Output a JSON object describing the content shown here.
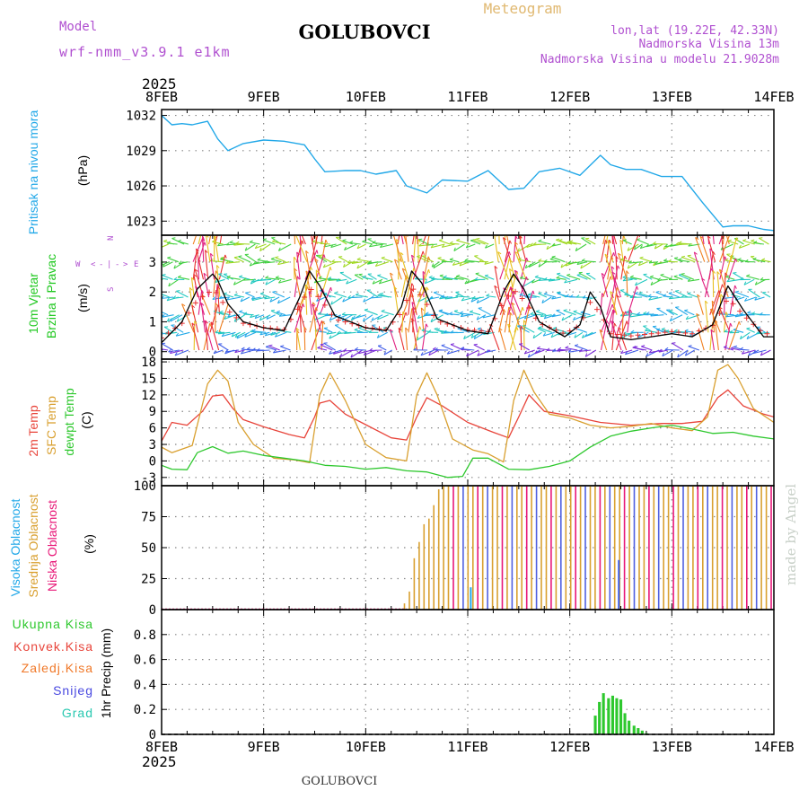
{
  "header": {
    "model_label": "Model",
    "model_name": "wrf-nmm_v3.9.1 e1km",
    "title": "GOLUBOVCI",
    "meteogram_label": "Meteogram",
    "lonlat": "lon,lat (19.22E, 42.33N)",
    "elevation": "Nadmorska Visina 13m",
    "model_elevation": "Nadmorska Visina u modelu 21.9028m",
    "watermark": "made by Angel",
    "footer": "GOLUBOVCI"
  },
  "time_axis": {
    "year": "2025",
    "ticks": [
      "8FEB",
      "9FEB",
      "10FEB",
      "11FEB",
      "12FEB",
      "13FEB",
      "14FEB"
    ]
  },
  "colors": {
    "pressure": "#22a8e8",
    "temp2m": "#e8443a",
    "sfc_temp": "#d9a030",
    "dewpt": "#2ec82e",
    "cloud_high": "#22a8e8",
    "cloud_mid": "#d9a030",
    "cloud_low": "#e81878",
    "precip_total": "#2ec82e",
    "precip_conv": "#e8443a",
    "precip_frozen": "#f07828",
    "precip_snow": "#4848e0",
    "precip_hail": "#28c8b0",
    "wind_label": "#20c820",
    "wind_dir_label": "#b050d0",
    "model_text": "#b050d0",
    "meteogram_text": "#e0b870"
  },
  "chart_data": [
    {
      "type": "line",
      "panel": "pressure",
      "ylabel_left": "Pritisak na nivou mora",
      "unit": "(hPa)",
      "yticks": [
        1023,
        1026,
        1029,
        1032
      ],
      "ylim": [
        1021.8,
        1032.5
      ],
      "series": [
        {
          "x": [
            0,
            0.1,
            0.2,
            0.3,
            0.45,
            0.55,
            0.65,
            0.8,
            1.0,
            1.2,
            1.4,
            1.5,
            1.6,
            1.8,
            1.95,
            2.1,
            2.3,
            2.4,
            2.6,
            2.75,
            3.0,
            3.2,
            3.4,
            3.55,
            3.7,
            3.9,
            4.1,
            4.3,
            4.4,
            4.55,
            4.7,
            4.9,
            5.1,
            5.3,
            5.5,
            5.6,
            5.75,
            5.9,
            6.0
          ],
          "y": [
            1032.0,
            1031.2,
            1031.3,
            1031.2,
            1031.5,
            1030.0,
            1029.0,
            1029.6,
            1029.9,
            1029.8,
            1029.5,
            1028.3,
            1027.2,
            1027.3,
            1027.3,
            1027.0,
            1027.3,
            1026.0,
            1025.4,
            1026.5,
            1026.4,
            1027.3,
            1025.7,
            1025.8,
            1027.2,
            1027.5,
            1026.9,
            1028.6,
            1027.8,
            1027.4,
            1027.4,
            1026.8,
            1026.8,
            1024.6,
            1022.5,
            1022.6,
            1022.6,
            1022.3,
            1022.2
          ]
        }
      ]
    },
    {
      "type": "line",
      "panel": "wind",
      "ylabel_left": [
        "10m Vjetar",
        "Brzina i Pravac"
      ],
      "unit": "(m/s)",
      "direction_legend": [
        "W",
        "<",
        "-",
        "|",
        "-",
        ">",
        "E",
        "N",
        "S"
      ],
      "yticks": [
        0,
        1,
        2,
        3
      ],
      "ylim": [
        -0.25,
        3.9
      ],
      "series": [
        {
          "x": [
            0,
            0.2,
            0.35,
            0.5,
            0.55,
            0.65,
            0.8,
            1.0,
            1.2,
            1.35,
            1.45,
            1.55,
            1.7,
            2.0,
            2.2,
            2.35,
            2.45,
            2.55,
            2.7,
            3.0,
            3.2,
            3.35,
            3.45,
            3.55,
            3.7,
            3.95,
            4.1,
            4.2,
            4.3,
            4.4,
            4.6,
            4.8,
            5.0,
            5.2,
            5.4,
            5.55,
            5.7,
            5.9,
            6.0
          ],
          "y": [
            0.3,
            1.0,
            2.1,
            2.6,
            2.4,
            1.6,
            1.0,
            0.8,
            0.7,
            1.8,
            2.7,
            2.2,
            1.2,
            0.8,
            0.7,
            1.5,
            2.7,
            2.3,
            1.1,
            0.7,
            0.6,
            2.0,
            2.6,
            2.1,
            1.0,
            0.5,
            0.9,
            2.0,
            1.5,
            0.5,
            0.4,
            0.5,
            0.6,
            0.5,
            0.9,
            2.2,
            1.4,
            0.5,
            0.5
          ]
        }
      ]
    },
    {
      "type": "line",
      "panel": "temperature",
      "ylabel_left": [
        "2m Temp",
        "SFC Temp",
        "dewpt Temp"
      ],
      "unit": "(C)",
      "yticks": [
        -3,
        0,
        3,
        6,
        9,
        12,
        15,
        18
      ],
      "ylim": [
        -4.5,
        18.5
      ],
      "series": [
        {
          "name": "2m Temp",
          "x": [
            0,
            0.1,
            0.25,
            0.4,
            0.5,
            0.6,
            0.7,
            0.8,
            1.0,
            1.25,
            1.4,
            1.5,
            1.55,
            1.65,
            1.8,
            2.0,
            2.25,
            2.4,
            2.5,
            2.6,
            2.75,
            3.0,
            3.25,
            3.4,
            3.5,
            3.6,
            3.75,
            4.0,
            4.3,
            4.6,
            4.9,
            5.1,
            5.3,
            5.45,
            5.55,
            5.7,
            5.9,
            6.0
          ],
          "y": [
            3.6,
            7.0,
            6.5,
            9.0,
            11.8,
            12.0,
            9.5,
            7.5,
            6.2,
            4.8,
            4.2,
            8.0,
            10.5,
            11.0,
            8.5,
            6.6,
            4.2,
            3.8,
            8.0,
            11.5,
            10.0,
            7.0,
            5.2,
            4.2,
            8.0,
            12.0,
            9.0,
            8.2,
            7.0,
            6.5,
            6.8,
            6.8,
            7.2,
            11.5,
            12.9,
            10.0,
            8.5,
            8.0
          ]
        },
        {
          "name": "SFC Temp",
          "x": [
            0,
            0.1,
            0.3,
            0.45,
            0.55,
            0.65,
            0.75,
            0.9,
            1.1,
            1.3,
            1.45,
            1.55,
            1.65,
            1.8,
            2.0,
            2.2,
            2.4,
            2.5,
            2.6,
            2.7,
            2.85,
            3.05,
            3.2,
            3.35,
            3.45,
            3.55,
            3.65,
            3.8,
            4.0,
            4.2,
            4.4,
            4.6,
            4.8,
            5.0,
            5.2,
            5.35,
            5.45,
            5.55,
            5.65,
            5.8,
            6.0
          ],
          "y": [
            2.5,
            1.5,
            2.8,
            14.0,
            16.5,
            14.5,
            7.0,
            3.0,
            0.5,
            0.2,
            -0.3,
            12.0,
            16.0,
            11.0,
            3.0,
            0.6,
            0.0,
            12.0,
            16.0,
            12.0,
            4.0,
            2.0,
            1.3,
            -0.2,
            11.0,
            16.5,
            12.5,
            8.5,
            7.8,
            6.5,
            6.0,
            6.3,
            6.8,
            6.0,
            5.5,
            8.0,
            16.5,
            17.5,
            15.0,
            9.5,
            7.0
          ]
        },
        {
          "name": "dewpt Temp",
          "x": [
            0,
            0.1,
            0.25,
            0.35,
            0.5,
            0.65,
            0.8,
            1.0,
            1.2,
            1.4,
            1.6,
            1.8,
            2.0,
            2.2,
            2.4,
            2.6,
            2.8,
            2.95,
            3.05,
            3.2,
            3.4,
            3.6,
            3.8,
            4.0,
            4.2,
            4.4,
            4.6,
            4.8,
            5.0,
            5.2,
            5.4,
            5.6,
            5.8,
            6.0
          ],
          "y": [
            -0.8,
            -1.5,
            -1.6,
            1.5,
            2.6,
            1.4,
            1.8,
            1.0,
            0.5,
            0.0,
            -0.8,
            -1.0,
            -1.5,
            -1.2,
            -1.8,
            -2.0,
            -3.0,
            -2.8,
            0.5,
            0.5,
            -1.5,
            -1.6,
            -1.0,
            0.0,
            2.5,
            4.5,
            5.4,
            6.0,
            6.5,
            5.8,
            5.0,
            5.2,
            4.5,
            4.0
          ]
        }
      ]
    },
    {
      "type": "bar",
      "panel": "cloud",
      "ylabel_left": [
        "Visoka Oblacnost",
        "Srednja Oblacnost",
        "Niska Oblacnost"
      ],
      "unit": "(%)",
      "yticks": [
        0,
        25,
        50,
        75,
        100
      ],
      "ylim": [
        0,
        100
      ],
      "note": "hourly bars; clear until ~10FEB 09h, mid cloud rising to 100% thereafter, mixed low/high bars from 11FEB"
    },
    {
      "type": "bar",
      "panel": "precip",
      "ylabel_left": [
        "Ukupna Kisa",
        "Konvek.Kisa",
        "Zaledj.Kisa",
        "Snijeg",
        "Grad"
      ],
      "unit": "1hr Precip (mm)",
      "yticks": [
        0,
        0.2,
        0.4,
        0.6,
        0.8
      ],
      "ylim": [
        0,
        1.0
      ],
      "series": [
        {
          "name": "Ukupna Kisa",
          "x": [
            4.25,
            4.29,
            4.33,
            4.38,
            4.42,
            4.46,
            4.5,
            4.54,
            4.58,
            4.63,
            4.67,
            4.71,
            4.75
          ],
          "y": [
            0.15,
            0.26,
            0.33,
            0.29,
            0.31,
            0.29,
            0.28,
            0.17,
            0.11,
            0.07,
            0.05,
            0.03,
            0.01
          ]
        }
      ]
    }
  ]
}
